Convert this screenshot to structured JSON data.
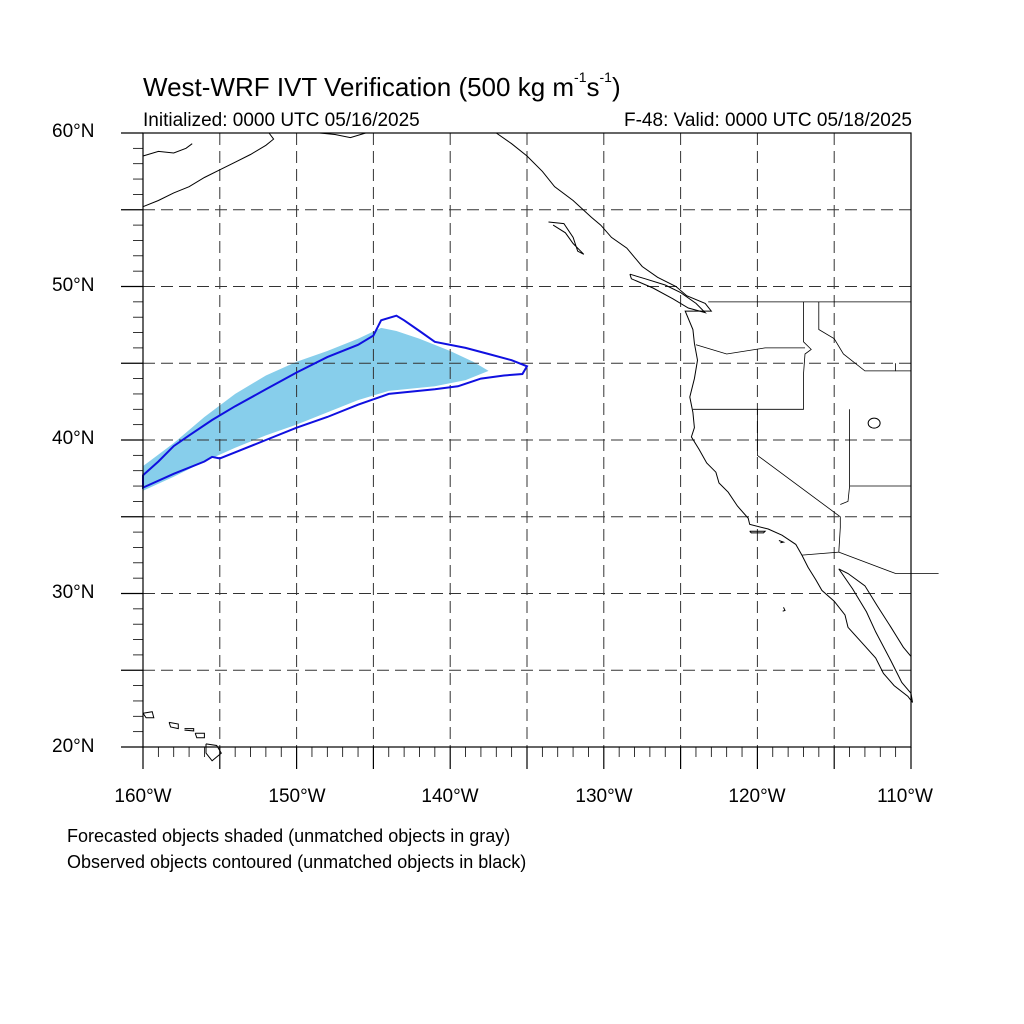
{
  "title": {
    "main": "West-WRF IVT Verification (500 kg m",
    "exp1": "-1",
    "mid": "s",
    "exp2": "-1",
    "end": ")"
  },
  "init_label": "Initialized: 0000 UTC 05/16/2025",
  "valid_label": "F-48: Valid: 0000 UTC 05/18/2025",
  "lat_labels": [
    "60°N",
    "50°N",
    "40°N",
    "30°N",
    "20°N"
  ],
  "lon_labels": [
    "160°W",
    "150°W",
    "140°W",
    "130°W",
    "120°W",
    "110°W"
  ],
  "notes": {
    "line1": "Forecasted objects shaded (unmatched objects in gray)",
    "line2": "Observed objects contoured (unmatched objects in black)"
  },
  "map_extent": {
    "lon": [
      -160,
      -110
    ],
    "lat": [
      20,
      60
    ]
  },
  "colors": {
    "forecast_fill": "#87ceeb",
    "observed_contour": "#1010e0",
    "coastline": "#000000",
    "grid": "#333333"
  },
  "forecast_object": {
    "name": "forecast",
    "polygon": [
      [
        -160,
        38.3
      ],
      [
        -158,
        39.8
      ],
      [
        -156,
        41.5
      ],
      [
        -154,
        43
      ],
      [
        -152,
        44.2
      ],
      [
        -150,
        45.1
      ],
      [
        -148,
        45.8
      ],
      [
        -146,
        46.6
      ],
      [
        -144.5,
        47.3
      ],
      [
        -143.5,
        47.1
      ],
      [
        -142,
        46.6
      ],
      [
        -140,
        45.8
      ],
      [
        -138.5,
        45.1
      ],
      [
        -137.5,
        44.5
      ],
      [
        -139,
        43.9
      ],
      [
        -141,
        43.5
      ],
      [
        -144,
        43.2
      ],
      [
        -146,
        42.6
      ],
      [
        -148,
        41.8
      ],
      [
        -150,
        41
      ],
      [
        -152,
        40.3
      ],
      [
        -154,
        39.5
      ],
      [
        -156,
        38.6
      ],
      [
        -158,
        37.6
      ],
      [
        -160,
        36.7
      ]
    ]
  },
  "observed_object": {
    "name": "observed",
    "polygon": [
      [
        -160,
        37.7
      ],
      [
        -159,
        38.6
      ],
      [
        -158,
        39.6
      ],
      [
        -157,
        40.3
      ],
      [
        -155.5,
        41.3
      ],
      [
        -154,
        42.2
      ],
      [
        -152,
        43.3
      ],
      [
        -150,
        44.4
      ],
      [
        -148,
        45.4
      ],
      [
        -146,
        46.2
      ],
      [
        -145,
        46.8
      ],
      [
        -144.5,
        47.8
      ],
      [
        -143.5,
        48.1
      ],
      [
        -143,
        47.8
      ],
      [
        -142,
        47.1
      ],
      [
        -141,
        46.4
      ],
      [
        -139,
        46
      ],
      [
        -137.5,
        45.6
      ],
      [
        -136,
        45.2
      ],
      [
        -135,
        44.8
      ],
      [
        -135.3,
        44.3
      ],
      [
        -136.5,
        44.2
      ],
      [
        -138,
        44
      ],
      [
        -139.5,
        43.5
      ],
      [
        -141,
        43.3
      ],
      [
        -144,
        43
      ],
      [
        -146,
        42.3
      ],
      [
        -148,
        41.5
      ],
      [
        -150,
        40.8
      ],
      [
        -152,
        40
      ],
      [
        -154,
        39.2
      ],
      [
        -155,
        38.8
      ],
      [
        -155.5,
        38.9
      ],
      [
        -156,
        38.6
      ],
      [
        -158,
        37.8
      ],
      [
        -160,
        36.9
      ]
    ]
  }
}
